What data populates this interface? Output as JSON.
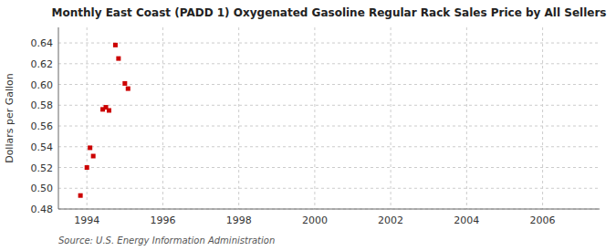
{
  "chart_data": {
    "type": "scatter",
    "title": "Monthly East Coast (PADD 1) Oxygenated Gasoline Regular Rack Sales Price by All Sellers",
    "y_label": "Dollars per Gallon",
    "annotations": [
      "Source: U.S. Energy Information Administration"
    ],
    "x": [
      1993.83,
      1994.0,
      1994.083,
      1994.167,
      1994.417,
      1994.5,
      1994.583,
      1994.75,
      1994.833,
      1995.0,
      1995.083
    ],
    "values": [
      0.493,
      0.52,
      0.539,
      0.531,
      0.576,
      0.578,
      0.575,
      0.638,
      0.625,
      0.601,
      0.596
    ],
    "color": "#cc0000",
    "marker": "square",
    "xlim": [
      1993.25,
      2007.5
    ],
    "ylim": [
      0.48,
      0.655
    ],
    "xticks": [
      1994,
      1996,
      1998,
      2000,
      2002,
      2004,
      2006
    ],
    "yticks": [
      0.48,
      {
        "value": 0.5,
        "label": "0.50"
      },
      0.52,
      0.54,
      0.56,
      0.58,
      {
        "value": 0.6,
        "label": "0.60"
      },
      0.62,
      0.64
    ],
    "grid": true
  }
}
